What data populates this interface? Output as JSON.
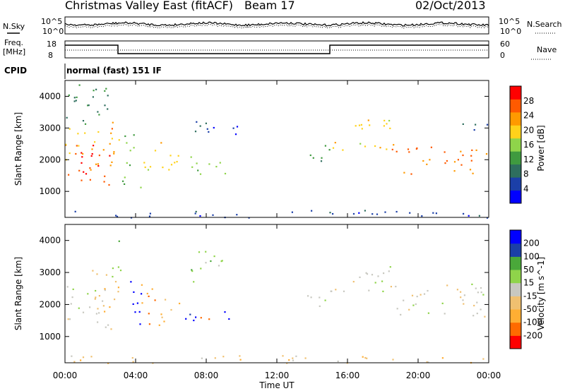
{
  "header": {
    "title": "Christmas Valley East (fitACF)",
    "beam": "Beam 17",
    "date": "02/Oct/2013"
  },
  "top_panels": {
    "nsky_label": "N.Sky",
    "nsearch_label": "N.Search",
    "noise_ticks": [
      "10^5",
      "10^0"
    ],
    "freq_label_line1": "Freq.",
    "freq_label_line2": "[MHz]",
    "freq_ticks": [
      "18",
      "8"
    ],
    "nave_label": "Nave",
    "nave_ticks": [
      "60",
      "0"
    ],
    "cpid_label": "CPID",
    "cpid_value": "normal (fast) 151 IF"
  },
  "chart_data": [
    {
      "type": "heatmap",
      "title": "",
      "xlabel": "Time UT",
      "ylabel": "Slant Range [km]",
      "x_ticks": [
        "00:00",
        "04:00",
        "08:00",
        "12:00",
        "16:00",
        "20:00",
        "00:00"
      ],
      "x_range_hours": [
        0,
        24
      ],
      "ylim": [
        180,
        4500
      ],
      "y_ticks": [
        "4000",
        "3000",
        "2000",
        "1000"
      ],
      "colorbar": {
        "label": "Power [dB]",
        "ticks": [
          "28",
          "24",
          "20",
          "16",
          "12",
          "8",
          "4"
        ],
        "range": [
          0,
          32
        ],
        "colors": [
          "#0000ff",
          "#1b3fa8",
          "#2e6e5e",
          "#3f9a3f",
          "#8fd44a",
          "#ffd21a",
          "#ff9a00",
          "#ff5a00",
          "#ff0000"
        ]
      },
      "regions": [
        {
          "t0": 0.0,
          "t1": 2.7,
          "r0": 1150,
          "r1": 2600,
          "value": 28
        },
        {
          "t0": 0.0,
          "t1": 2.9,
          "r0": 1700,
          "r1": 3000,
          "value": 22
        },
        {
          "t0": 2.6,
          "t1": 3.2,
          "r0": 2000,
          "r1": 3300,
          "value": 24
        },
        {
          "t0": 0.0,
          "t1": 2.5,
          "r0": 2900,
          "r1": 4400,
          "value": 10
        },
        {
          "t0": 3.2,
          "t1": 4.3,
          "r0": 1100,
          "r1": 2900,
          "value": 14
        },
        {
          "t0": 4.3,
          "t1": 5.5,
          "r0": 1700,
          "r1": 2800,
          "value": 20
        },
        {
          "t0": 5.5,
          "t1": 6.5,
          "r0": 1300,
          "r1": 2300,
          "value": 18
        },
        {
          "t0": 6.9,
          "t1": 7.5,
          "r0": 1400,
          "r1": 2200,
          "value": 14
        },
        {
          "t0": 7.2,
          "t1": 9.3,
          "r0": 1450,
          "r1": 1950,
          "value": 16
        },
        {
          "t0": 6.8,
          "t1": 8.2,
          "r0": 2900,
          "r1": 3700,
          "value": 8
        },
        {
          "t0": 8.2,
          "t1": 9.8,
          "r0": 2750,
          "r1": 3200,
          "value": 5
        },
        {
          "t0": 13.7,
          "t1": 15.0,
          "r0": 1900,
          "r1": 2700,
          "value": 12
        },
        {
          "t0": 15.0,
          "t1": 18.5,
          "r0": 2300,
          "r1": 3300,
          "value": 20
        },
        {
          "t0": 18.5,
          "t1": 24.0,
          "r0": 1550,
          "r1": 2500,
          "value": 26
        },
        {
          "t0": 22.0,
          "t1": 24.0,
          "r0": 2900,
          "r1": 3300,
          "value": 8
        },
        {
          "t0": 0.0,
          "t1": 24.0,
          "r0": 180,
          "r1": 420,
          "value": 6
        }
      ]
    },
    {
      "type": "heatmap",
      "title": "",
      "xlabel": "Time UT",
      "ylabel": "Slant Range [km]",
      "x_ticks": [
        "00:00",
        "04:00",
        "08:00",
        "12:00",
        "16:00",
        "20:00",
        "00:00"
      ],
      "x_range_hours": [
        0,
        24
      ],
      "ylim": [
        180,
        4500
      ],
      "y_ticks": [
        "4000",
        "3000",
        "2000",
        "1000"
      ],
      "colorbar": {
        "label": "Velocity [m s^-1]",
        "ticks": [
          "200",
          "100",
          "50",
          "15",
          "-15",
          "-50",
          "-100",
          "-200"
        ],
        "range": [
          -250,
          250
        ],
        "colors": [
          "#ff0000",
          "#ff6a00",
          "#ffae33",
          "#f0c070",
          "#c8c8c0",
          "#8fd44a",
          "#4aa83a",
          "#1b3fa8",
          "#0000ff"
        ]
      },
      "regions": [
        {
          "t0": 0.0,
          "t1": 2.7,
          "r0": 1150,
          "r1": 2600,
          "value": 0
        },
        {
          "t0": 1.5,
          "t1": 3.0,
          "r0": 1800,
          "r1": 3200,
          "value": -60
        },
        {
          "t0": 2.6,
          "t1": 3.2,
          "r0": 2800,
          "r1": 4400,
          "value": 70
        },
        {
          "t0": 3.5,
          "t1": 4.3,
          "r0": 1100,
          "r1": 2800,
          "value": 220
        },
        {
          "t0": 4.3,
          "t1": 5.4,
          "r0": 1300,
          "r1": 2700,
          "value": -130
        },
        {
          "t0": 5.4,
          "t1": 6.7,
          "r0": 1400,
          "r1": 2200,
          "value": -80
        },
        {
          "t0": 6.8,
          "t1": 7.6,
          "r0": 1400,
          "r1": 2200,
          "value": 220
        },
        {
          "t0": 7.6,
          "t1": 8.4,
          "r0": 1550,
          "r1": 2100,
          "value": -200
        },
        {
          "t0": 8.4,
          "t1": 9.3,
          "r0": 1550,
          "r1": 1900,
          "value": 220
        },
        {
          "t0": 6.8,
          "t1": 9.0,
          "r0": 2700,
          "r1": 3700,
          "value": 60
        },
        {
          "t0": 13.7,
          "t1": 15.0,
          "r0": 1900,
          "r1": 2600,
          "value": 30
        },
        {
          "t0": 15.0,
          "t1": 18.5,
          "r0": 2400,
          "r1": 3300,
          "value": 0
        },
        {
          "t0": 18.5,
          "t1": 24.0,
          "r0": 1600,
          "r1": 2700,
          "value": 0
        },
        {
          "t0": 0.0,
          "t1": 24.0,
          "r0": 180,
          "r1": 420,
          "value": -60
        }
      ]
    }
  ]
}
